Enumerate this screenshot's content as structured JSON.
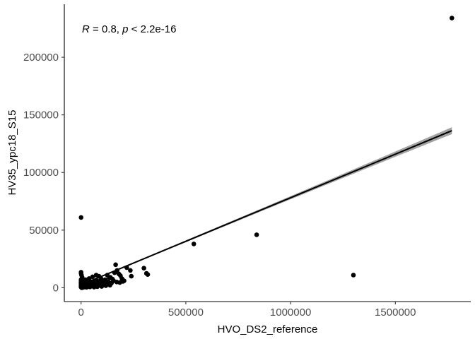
{
  "chart_data": {
    "type": "scatter",
    "xlabel": "HVO_DS2_reference",
    "ylabel": "HV35_ypc18_S15",
    "annotation": {
      "r_symbol": "R",
      "r_text": " = 0.8, ",
      "p_symbol": "p",
      "p_text": " < 2.2e-16"
    },
    "xlim": [
      -80000,
      1860000
    ],
    "ylim": [
      -12000,
      246000
    ],
    "x_ticks": [
      0,
      500000,
      1000000,
      1500000
    ],
    "x_tick_labels": [
      "0",
      "500000",
      "1000000",
      "1500000"
    ],
    "y_ticks": [
      0,
      50000,
      100000,
      150000,
      200000
    ],
    "y_tick_labels": [
      "0",
      "50000",
      "100000",
      "150000",
      "200000"
    ],
    "grid": false,
    "regression": {
      "x_range": [
        0,
        1770000
      ],
      "intercept": 2500,
      "slope": 0.0756,
      "confidence_band_halfwidth": [
        600,
        3000
      ]
    },
    "points": [
      [
        1770000,
        234000
      ],
      [
        0,
        61000
      ],
      [
        838000,
        46000
      ],
      [
        538000,
        38000
      ],
      [
        1300000,
        11000
      ],
      [
        0,
        13500
      ],
      [
        0,
        12500
      ],
      [
        2000,
        11000
      ],
      [
        5000,
        9000
      ],
      [
        8000,
        7500
      ],
      [
        12000,
        6500
      ],
      [
        18000,
        6000
      ],
      [
        25000,
        5500
      ],
      [
        35000,
        5000
      ],
      [
        48000,
        5200
      ],
      [
        60000,
        4800
      ],
      [
        75000,
        6000
      ],
      [
        85000,
        10000
      ],
      [
        95000,
        8000
      ],
      [
        105000,
        5000
      ],
      [
        115000,
        7000
      ],
      [
        125000,
        11000
      ],
      [
        140000,
        9000
      ],
      [
        150000,
        7500
      ],
      [
        160000,
        13000
      ],
      [
        165000,
        20000
      ],
      [
        172000,
        15000
      ],
      [
        180000,
        12000
      ],
      [
        188000,
        10500
      ],
      [
        195000,
        8000
      ],
      [
        205000,
        6000
      ],
      [
        218000,
        17500
      ],
      [
        235000,
        15000
      ],
      [
        240000,
        10000
      ],
      [
        300000,
        17000
      ],
      [
        312000,
        12500
      ],
      [
        318000,
        11500
      ],
      [
        0,
        500
      ],
      [
        0,
        1000
      ],
      [
        0,
        1500
      ],
      [
        0,
        2000
      ],
      [
        0,
        2500
      ],
      [
        0,
        3000
      ],
      [
        0,
        3500
      ],
      [
        0,
        4000
      ],
      [
        0,
        4500
      ],
      [
        0,
        5000
      ],
      [
        0,
        6000
      ],
      [
        0,
        7000
      ],
      [
        3000,
        0
      ],
      [
        6000,
        800
      ],
      [
        10000,
        1500
      ],
      [
        14000,
        2200
      ],
      [
        20000,
        3000
      ],
      [
        28000,
        1000
      ],
      [
        32000,
        2500
      ],
      [
        40000,
        3500
      ],
      [
        45000,
        1200
      ],
      [
        52000,
        2000
      ],
      [
        58000,
        4000
      ],
      [
        66000,
        1500
      ],
      [
        70000,
        3000
      ],
      [
        80000,
        2000
      ],
      [
        90000,
        3500
      ],
      [
        100000,
        2500
      ],
      [
        110000,
        4000
      ],
      [
        120000,
        3000
      ],
      [
        130000,
        5000
      ],
      [
        145000,
        4000
      ],
      [
        155000,
        6000
      ],
      [
        170000,
        5000
      ],
      [
        185000,
        4500
      ],
      [
        200000,
        5500
      ],
      [
        15000,
        4500
      ],
      [
        22000,
        7000
      ],
      [
        38000,
        8000
      ],
      [
        55000,
        9500
      ],
      [
        72000,
        11000
      ],
      [
        92000,
        6000
      ],
      [
        135000,
        8500
      ],
      [
        4000,
        200
      ],
      [
        9000,
        300
      ],
      [
        16000,
        600
      ],
      [
        26000,
        400
      ],
      [
        42000,
        700
      ],
      [
        62000,
        500
      ],
      [
        78000,
        900
      ],
      [
        98000,
        1100
      ],
      [
        118000,
        1800
      ],
      [
        138000,
        2200
      ]
    ]
  }
}
